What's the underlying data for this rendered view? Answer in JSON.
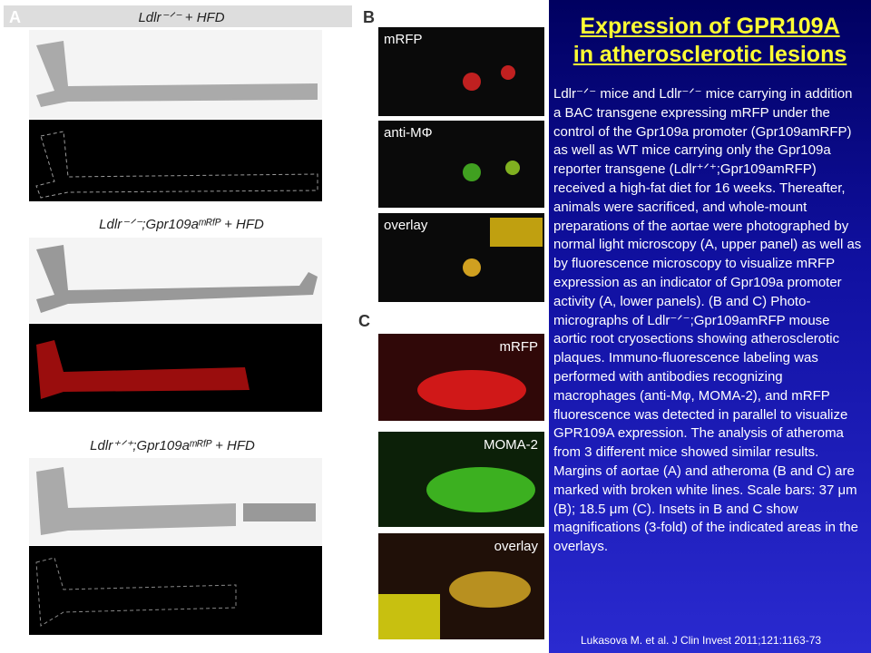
{
  "slide": {
    "title": [
      "Expression of GPR109A",
      "in atherosclerotic lesions"
    ],
    "body": "Ldlr⁻ᐟ⁻ mice and Ldlr⁻ᐟ⁻ mice carrying in addition a BAC transgene expressing mRFP under the control of the Gpr109a promoter (Gpr109amRFP) as well as WT mice carrying only the Gpr109a reporter transgene (Ldlr⁺ᐟ⁺;Gpr109amRFP) received a high-fat diet for 16 weeks. Thereafter, animals were sacrificed, and whole-mount preparations of the aortae were photographed by normal light microscopy (A, upper panel) as well as by fluorescence microscopy to visualize mRFP expression as an indicator of Gpr109a promoter activity (A, lower panels). (B and C) Photo-micrographs of Ldlr⁻ᐟ⁻;Gpr109amRFP mouse aortic root cryosections showing atherosclerotic plaques. Immuno-fluorescence labeling was performed with antibodies recognizing macrophages (anti-Mφ, MOMA-2), and mRFP fluorescence was detected in parallel to visualize GPR109A expression. The analysis of atheroma from 3 different mice showed similar results. Margins of aortae (A) and atheroma (B and C) are marked with broken white lines. Scale bars: 37 μm (B); 18.5 μm (C). Insets in B and C show magnifications (3-fold) of the indicated areas in the overlays.",
    "citation": "Lukasova M. et al.  J Clin Invest 2011;121:1163-73"
  },
  "figure": {
    "panel_labels": [
      "A",
      "B",
      "C"
    ],
    "a_captions": [
      "Ldlr⁻ᐟ⁻ + HFD",
      "Ldlr⁻ᐟ⁻;Gpr109aᵐᴿᶠᴾ + HFD",
      "Ldlr⁺ᐟ⁺;Gpr109aᵐᴿᶠᴾ + HFD"
    ],
    "b_labels": [
      "mRFP",
      "anti-MΦ",
      "overlay"
    ],
    "c_labels": [
      "mRFP",
      "MOMA-2",
      "overlay"
    ]
  }
}
